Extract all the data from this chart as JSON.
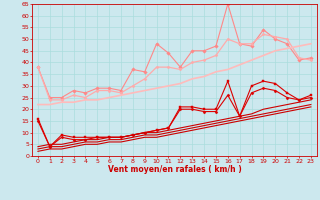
{
  "x": [
    0,
    1,
    2,
    3,
    4,
    5,
    6,
    7,
    8,
    9,
    10,
    11,
    12,
    13,
    14,
    15,
    16,
    17,
    18,
    19,
    20,
    21,
    22,
    23
  ],
  "series": [
    {
      "name": "pink_jagged",
      "color": "#ff8888",
      "linewidth": 0.8,
      "marker": "D",
      "markersize": 1.8,
      "values": [
        38,
        25,
        25,
        28,
        27,
        29,
        29,
        28,
        37,
        36,
        48,
        44,
        38,
        45,
        45,
        47,
        65,
        48,
        47,
        54,
        50,
        48,
        41,
        42
      ]
    },
    {
      "name": "pink_smooth_upper",
      "color": "#ffaaaa",
      "linewidth": 0.9,
      "marker": "D",
      "markersize": 1.5,
      "values": [
        38,
        24,
        24,
        26,
        25,
        28,
        28,
        27,
        30,
        33,
        38,
        38,
        37,
        40,
        41,
        43,
        50,
        48,
        48,
        52,
        51,
        50,
        42,
        41
      ]
    },
    {
      "name": "pink_trend",
      "color": "#ffbbbb",
      "linewidth": 1.2,
      "marker": null,
      "markersize": 0,
      "values": [
        22,
        22,
        23,
        23,
        24,
        24,
        25,
        26,
        27,
        28,
        29,
        30,
        31,
        33,
        34,
        36,
        37,
        39,
        41,
        43,
        45,
        46,
        47,
        48
      ]
    },
    {
      "name": "red_jagged",
      "color": "#dd0000",
      "linewidth": 0.8,
      "marker": "s",
      "markersize": 1.8,
      "values": [
        16,
        4,
        9,
        8,
        8,
        8,
        8,
        8,
        9,
        10,
        11,
        12,
        21,
        21,
        20,
        20,
        32,
        17,
        30,
        32,
        31,
        27,
        24,
        26
      ]
    },
    {
      "name": "red_smooth",
      "color": "#dd0000",
      "linewidth": 0.8,
      "marker": "D",
      "markersize": 1.5,
      "values": [
        15,
        4,
        8,
        7,
        7,
        8,
        8,
        8,
        9,
        10,
        11,
        12,
        20,
        20,
        19,
        19,
        26,
        17,
        27,
        29,
        28,
        25,
        24,
        25
      ]
    },
    {
      "name": "red_trend1",
      "color": "#cc0000",
      "linewidth": 0.8,
      "marker": null,
      "markersize": 0,
      "values": [
        4,
        5,
        5,
        6,
        7,
        7,
        8,
        8,
        9,
        10,
        10,
        11,
        12,
        13,
        14,
        15,
        16,
        17,
        18,
        20,
        21,
        22,
        23,
        24
      ]
    },
    {
      "name": "red_trend2",
      "color": "#cc0000",
      "linewidth": 0.8,
      "marker": null,
      "markersize": 0,
      "values": [
        3,
        4,
        4,
        5,
        6,
        6,
        7,
        7,
        8,
        9,
        9,
        10,
        11,
        12,
        13,
        14,
        15,
        16,
        17,
        18,
        19,
        20,
        21,
        22
      ]
    },
    {
      "name": "red_trend3",
      "color": "#cc0000",
      "linewidth": 0.8,
      "marker": null,
      "markersize": 0,
      "values": [
        2,
        3,
        3,
        4,
        5,
        5,
        6,
        6,
        7,
        8,
        8,
        9,
        10,
        11,
        12,
        13,
        14,
        15,
        16,
        17,
        18,
        19,
        20,
        21
      ]
    }
  ],
  "xlabel": "Vent moyen/en rafales ( km/h )",
  "xlim": [
    -0.5,
    23.5
  ],
  "ylim": [
    0,
    65
  ],
  "yticks": [
    0,
    5,
    10,
    15,
    20,
    25,
    30,
    35,
    40,
    45,
    50,
    55,
    60,
    65
  ],
  "xticks": [
    0,
    1,
    2,
    3,
    4,
    5,
    6,
    7,
    8,
    9,
    10,
    11,
    12,
    13,
    14,
    15,
    16,
    17,
    18,
    19,
    20,
    21,
    22,
    23
  ],
  "bg_color": "#cce8ee",
  "grid_color": "#aadddd"
}
